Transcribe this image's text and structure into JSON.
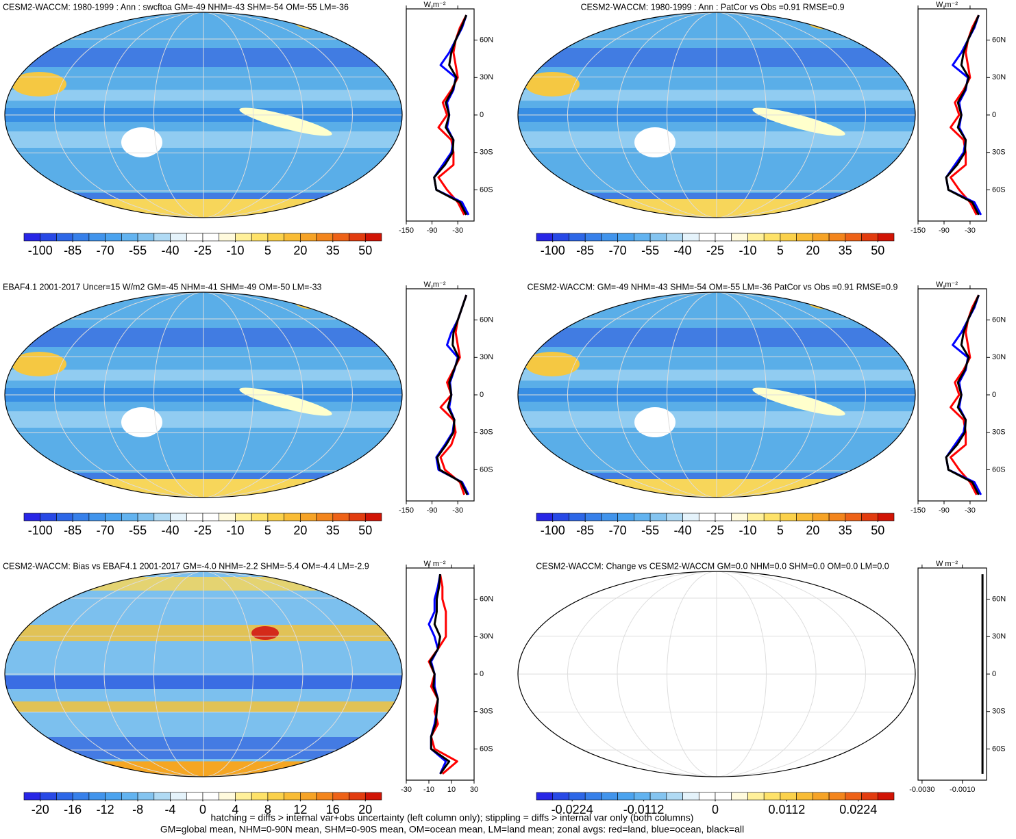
{
  "panels": [
    {
      "title": "CESM2-WACCM: 1980-1999 : Ann : swcftoa GM=-49 NHM=-43 SHM=-54 OM=-55 LM=-36",
      "colorbar": {
        "ticks": [
          -100,
          -85,
          -70,
          -55,
          -40,
          -25,
          -10,
          5,
          20,
          35,
          50
        ],
        "lim": [
          -107.5,
          57.5
        ]
      },
      "chart_data": {
        "type": "line",
        "xlabel": "W m⁻²",
        "lat": [
          -80,
          -70,
          -60,
          -50,
          -40,
          -30,
          -20,
          -10,
          0,
          10,
          20,
          30,
          40,
          50,
          60,
          70,
          80
        ],
        "series": [
          {
            "color": "#ff0000",
            "values": [
              -15,
              -30,
              -55,
              -75,
              -40,
              -40,
              -45,
              -75,
              -55,
              -65,
              -45,
              -30,
              -35,
              -40,
              -35,
              -25,
              -10
            ]
          },
          {
            "color": "#0000ff",
            "values": [
              -5,
              -20,
              -80,
              -85,
              -65,
              -45,
              -40,
              -55,
              -50,
              -55,
              -40,
              -35,
              -70,
              -50,
              -35,
              -20,
              -10
            ]
          },
          {
            "color": "#000000",
            "values": [
              -10,
              -25,
              -80,
              -85,
              -60,
              -42,
              -40,
              -58,
              -50,
              -58,
              -42,
              -33,
              -50,
              -45,
              -35,
              -22,
              -10
            ]
          }
        ],
        "xlim": [
          -150,
          8
        ],
        "xticks": [
          -150,
          -90,
          -30
        ],
        "ylim": [
          -85,
          85
        ],
        "yticks": [
          {
            "value": 60,
            "label": "60N"
          },
          {
            "value": 30,
            "label": "30N"
          },
          0,
          {
            "value": -30,
            "label": "30S"
          },
          {
            "value": -60,
            "label": "60S"
          }
        ]
      }
    },
    {
      "title": "CESM2-WACCM: 1980-1999 : Ann : PatCor vs Obs =0.91 RMSE=0.9",
      "colorbar": {
        "ticks": [
          -100,
          -85,
          -70,
          -55,
          -40,
          -25,
          -10,
          5,
          20,
          35,
          50
        ],
        "lim": [
          -107.5,
          57.5
        ]
      },
      "chart_data": {
        "type": "line",
        "xlabel": "W m⁻²",
        "lat": [
          -80,
          -70,
          -60,
          -50,
          -40,
          -30,
          -20,
          -10,
          0,
          10,
          20,
          30,
          40,
          50,
          60,
          70,
          80
        ],
        "series": [
          {
            "color": "#ff0000",
            "values": [
              -15,
              -30,
              -55,
              -75,
              -40,
              -40,
              -45,
              -75,
              -55,
              -65,
              -45,
              -30,
              -35,
              -40,
              -35,
              -25,
              -10
            ]
          },
          {
            "color": "#0000ff",
            "values": [
              -5,
              -20,
              -80,
              -85,
              -65,
              -45,
              -40,
              -55,
              -50,
              -55,
              -40,
              -35,
              -70,
              -50,
              -35,
              -20,
              -10
            ]
          },
          {
            "color": "#000000",
            "values": [
              -10,
              -25,
              -80,
              -85,
              -60,
              -42,
              -40,
              -58,
              -50,
              -58,
              -42,
              -33,
              -50,
              -45,
              -35,
              -22,
              -10
            ]
          }
        ],
        "xlim": [
          -150,
          8
        ],
        "xticks": [
          -150,
          -90,
          -30
        ],
        "ylim": [
          -85,
          85
        ],
        "yticks": [
          {
            "value": 60,
            "label": "60N"
          },
          {
            "value": 30,
            "label": "30N"
          },
          0,
          {
            "value": -30,
            "label": "30S"
          },
          {
            "value": -60,
            "label": "60S"
          }
        ]
      }
    },
    {
      "title": "EBAF4.1 2001-2017 Uncer=15 W/m2 GM=-45 NHM=-41 SHM=-49 OM=-50 LM=-33",
      "colorbar": {
        "ticks": [
          -100,
          -85,
          -70,
          -55,
          -40,
          -25,
          -10,
          5,
          20,
          35,
          50
        ],
        "lim": [
          -107.5,
          57.5
        ]
      },
      "chart_data": {
        "type": "line",
        "xlabel": "W m⁻²",
        "lat": [
          -80,
          -70,
          -60,
          -50,
          -40,
          -30,
          -20,
          -10,
          0,
          10,
          20,
          30,
          40,
          50,
          60,
          70,
          80
        ],
        "series": [
          {
            "color": "#ff0000",
            "values": [
              -15,
              -25,
              -60,
              -70,
              -45,
              -35,
              -40,
              -70,
              -45,
              -55,
              -40,
              -25,
              -30,
              -35,
              -30,
              -20,
              -10
            ]
          },
          {
            "color": "#0000ff",
            "values": [
              -5,
              -20,
              -75,
              -80,
              -60,
              -42,
              -38,
              -50,
              -45,
              -48,
              -38,
              -30,
              -55,
              -45,
              -30,
              -20,
              -10
            ]
          },
          {
            "color": "#000000",
            "values": [
              -8,
              -22,
              -72,
              -78,
              -57,
              -40,
              -38,
              -53,
              -45,
              -50,
              -39,
              -28,
              -42,
              -40,
              -30,
              -20,
              -10
            ]
          }
        ],
        "xlim": [
          -150,
          8
        ],
        "xticks": [
          -150,
          -90,
          -30
        ],
        "ylim": [
          -85,
          85
        ],
        "yticks": [
          {
            "value": 60,
            "label": "60N"
          },
          {
            "value": 30,
            "label": "30N"
          },
          0,
          {
            "value": -30,
            "label": "30S"
          },
          {
            "value": -60,
            "label": "60S"
          }
        ]
      }
    },
    {
      "title": "CESM2-WACCM: GM=-49 NHM=-43 SHM=-54 OM=-55 LM=-36 PatCor vs Obs =0.91 RMSE=0.9",
      "colorbar": {
        "ticks": [
          -100,
          -85,
          -70,
          -55,
          -40,
          -25,
          -10,
          5,
          20,
          35,
          50
        ],
        "lim": [
          -107.5,
          57.5
        ]
      },
      "chart_data": {
        "type": "line",
        "xlabel": "W m⁻²",
        "lat": [
          -80,
          -70,
          -60,
          -50,
          -40,
          -30,
          -20,
          -10,
          0,
          10,
          20,
          30,
          40,
          50,
          60,
          70,
          80
        ],
        "series": [
          {
            "color": "#ff0000",
            "values": [
              -15,
              -30,
              -55,
              -75,
              -40,
              -40,
              -45,
              -75,
              -55,
              -65,
              -45,
              -30,
              -35,
              -40,
              -35,
              -25,
              -10
            ]
          },
          {
            "color": "#0000ff",
            "values": [
              -5,
              -20,
              -80,
              -85,
              -65,
              -45,
              -40,
              -55,
              -50,
              -55,
              -40,
              -35,
              -70,
              -50,
              -35,
              -20,
              -10
            ]
          },
          {
            "color": "#000000",
            "values": [
              -10,
              -25,
              -80,
              -85,
              -60,
              -42,
              -40,
              -58,
              -50,
              -58,
              -42,
              -33,
              -50,
              -45,
              -35,
              -22,
              -10
            ]
          }
        ],
        "xlim": [
          -150,
          8
        ],
        "xticks": [
          -150,
          -90,
          -30
        ],
        "ylim": [
          -85,
          85
        ],
        "yticks": [
          {
            "value": 60,
            "label": "60N"
          },
          {
            "value": 30,
            "label": "30N"
          },
          0,
          {
            "value": -30,
            "label": "30S"
          },
          {
            "value": -60,
            "label": "60S"
          }
        ]
      }
    },
    {
      "title": "CESM2-WACCM: Bias vs EBAF4.1 2001-2017 GM=-4.0 NHM=-2.2 SHM=-5.4 OM=-4.4 LM=-2.9",
      "colorbar": {
        "ticks": [
          -20,
          -16,
          -12,
          -8,
          -4,
          0,
          4,
          8,
          12,
          16,
          20
        ],
        "lim": [
          -22,
          22
        ]
      },
      "chart_data": {
        "type": "line",
        "xlabel": "W m⁻²",
        "lat": [
          -80,
          -70,
          -60,
          -50,
          -40,
          -30,
          -20,
          -10,
          0,
          10,
          20,
          30,
          40,
          50,
          60,
          70,
          80
        ],
        "series": [
          {
            "color": "#ff0000",
            "values": [
              2,
              15,
              -5,
              -8,
              -2,
              -5,
              -2,
              -8,
              -5,
              -10,
              -2,
              5,
              5,
              5,
              2,
              2,
              0
            ]
          },
          {
            "color": "#0000ff",
            "values": [
              0,
              5,
              -8,
              -8,
              -5,
              -3,
              -2,
              -5,
              -5,
              -8,
              -2,
              -5,
              -10,
              -5,
              -5,
              -2,
              0
            ]
          },
          {
            "color": "#000000",
            "values": [
              0,
              8,
              -8,
              -8,
              -4,
              -3,
              -2,
              -6,
              -5,
              -9,
              -2,
              0,
              -5,
              -3,
              -3,
              -1,
              0
            ]
          }
        ],
        "xlim": [
          -30,
          30
        ],
        "xticks": [
          -30,
          -10,
          10,
          30
        ],
        "ylim": [
          -85,
          85
        ],
        "yticks": [
          {
            "value": 60,
            "label": "60N"
          },
          {
            "value": 30,
            "label": "30N"
          },
          0,
          {
            "value": -30,
            "label": "30S"
          },
          {
            "value": -60,
            "label": "60S"
          }
        ]
      }
    },
    {
      "title": "CESM2-WACCM: Change vs CESM2-WACCM GM=0.0 NHM=0.0 SHM=0.0 OM=0.0 LM=0.0",
      "colorbar": {
        "ticks": [
          -0.0224,
          -0.0112,
          0,
          0.0112,
          0.0224
        ],
        "lim": [
          -0.028,
          0.028
        ]
      },
      "chart_data": {
        "type": "line",
        "xlabel": "W m⁻²",
        "lat": [
          -80,
          -70,
          -60,
          -50,
          -40,
          -30,
          -20,
          -10,
          0,
          10,
          20,
          30,
          40,
          50,
          60,
          70,
          80
        ],
        "series": [
          {
            "color": "#000000",
            "values": [
              0,
              0,
              0,
              0,
              0,
              0,
              0,
              0,
              0,
              0,
              0,
              0,
              0,
              0,
              0,
              0,
              0
            ]
          }
        ],
        "xlim": [
          -0.0032,
          0.0002
        ],
        "xticks": [
          {
            "value": -0.003,
            "label": "-0.0030"
          },
          {
            "value": -0.001,
            "label": "-0.0010"
          }
        ],
        "ylim": [
          -85,
          85
        ],
        "yticks": [
          {
            "value": 60,
            "label": "60N"
          },
          {
            "value": 30,
            "label": "30N"
          },
          0,
          {
            "value": -30,
            "label": "30S"
          },
          {
            "value": -60,
            "label": "60S"
          }
        ]
      }
    }
  ],
  "footer": [
    "hatching = diffs > internal var+obs uncertainty (left column only); stippling = diffs > internal var only (both columns)",
    "GM=global mean, NHM=0-90N mean, SHM=0-90S mean, OM=ocean mean, LM=land mean; zonal avgs: red=land, blue=ocean, black=all"
  ]
}
